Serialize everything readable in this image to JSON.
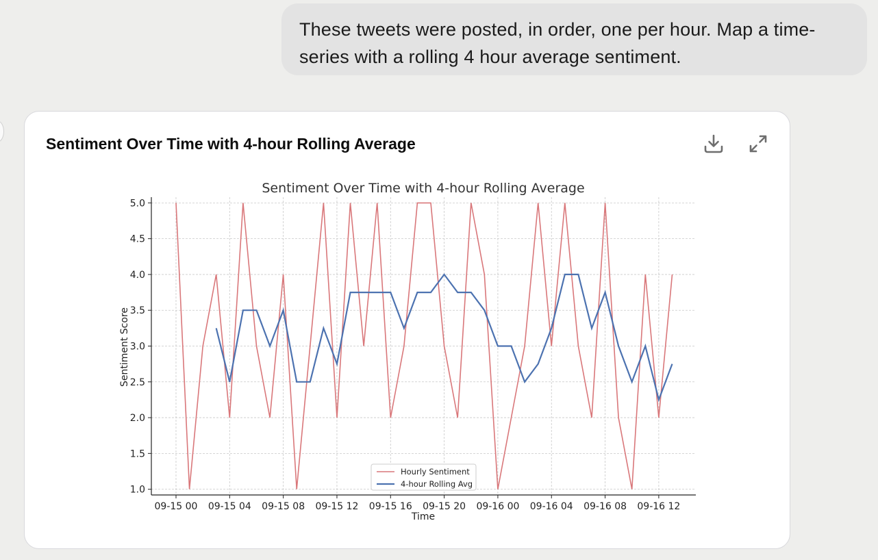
{
  "user_message": {
    "line1": "These tweets were posted, in order, one per hour. Map a time-",
    "line2": "series with a rolling 4 hour average sentiment."
  },
  "card": {
    "title": "Sentiment Over Time with 4-hour Rolling Average",
    "download_icon": "download-icon",
    "expand_icon": "expand-icon"
  },
  "colors": {
    "hourly": "#d9777a",
    "rolling": "#4c72b0",
    "grid": "#c8c8c8",
    "axis": "#222222"
  },
  "chart_data": {
    "type": "line",
    "title": "Sentiment Over Time with 4-hour Rolling Average",
    "xlabel": "Time",
    "ylabel": "Sentiment Score",
    "x": [
      "2023-09-15 00:00",
      "2023-09-15 01:00",
      "2023-09-15 02:00",
      "2023-09-15 03:00",
      "2023-09-15 04:00",
      "2023-09-15 05:00",
      "2023-09-15 06:00",
      "2023-09-15 07:00",
      "2023-09-15 08:00",
      "2023-09-15 09:00",
      "2023-09-15 10:00",
      "2023-09-15 11:00",
      "2023-09-15 12:00",
      "2023-09-15 13:00",
      "2023-09-15 14:00",
      "2023-09-15 15:00",
      "2023-09-15 16:00",
      "2023-09-15 17:00",
      "2023-09-15 18:00",
      "2023-09-15 19:00",
      "2023-09-15 20:00",
      "2023-09-15 21:00",
      "2023-09-15 22:00",
      "2023-09-15 23:00",
      "2023-09-16 00:00",
      "2023-09-16 01:00",
      "2023-09-16 02:00",
      "2023-09-16 03:00",
      "2023-09-16 04:00",
      "2023-09-16 05:00",
      "2023-09-16 06:00",
      "2023-09-16 07:00",
      "2023-09-16 08:00",
      "2023-09-16 09:00",
      "2023-09-16 10:00",
      "2023-09-16 11:00",
      "2023-09-16 12:00",
      "2023-09-16 13:00"
    ],
    "xticks": [
      "09-15 00",
      "09-15 04",
      "09-15 08",
      "09-15 12",
      "09-15 16",
      "09-15 20",
      "09-16 00",
      "09-16 04",
      "09-16 08",
      "09-16 12"
    ],
    "yticks": [
      "1.0",
      "1.5",
      "2.0",
      "2.5",
      "3.0",
      "3.5",
      "4.0",
      "4.5",
      "5.0"
    ],
    "ylim": [
      0.92,
      5.08
    ],
    "grid": true,
    "legend_position": "bottom-center",
    "series": [
      {
        "name": "Hourly Sentiment",
        "values": [
          5,
          1,
          3,
          4,
          2,
          5,
          3,
          2,
          4,
          1,
          3,
          5,
          2,
          5,
          3,
          5,
          2,
          3,
          5,
          5,
          3,
          2,
          5,
          4,
          1,
          2,
          3,
          5,
          3,
          5,
          3,
          2,
          5,
          2,
          1,
          4,
          2,
          4
        ]
      },
      {
        "name": "4-hour Rolling Avg",
        "values": [
          null,
          null,
          null,
          3.25,
          2.5,
          3.5,
          3.5,
          3.0,
          3.5,
          2.5,
          2.5,
          3.25,
          2.75,
          3.75,
          3.75,
          3.75,
          3.75,
          3.25,
          3.75,
          3.75,
          4.0,
          3.75,
          3.75,
          3.5,
          3.0,
          3.0,
          2.5,
          2.75,
          3.25,
          4.0,
          4.0,
          3.25,
          3.75,
          3.0,
          2.5,
          3.0,
          2.25,
          2.75
        ]
      }
    ]
  }
}
